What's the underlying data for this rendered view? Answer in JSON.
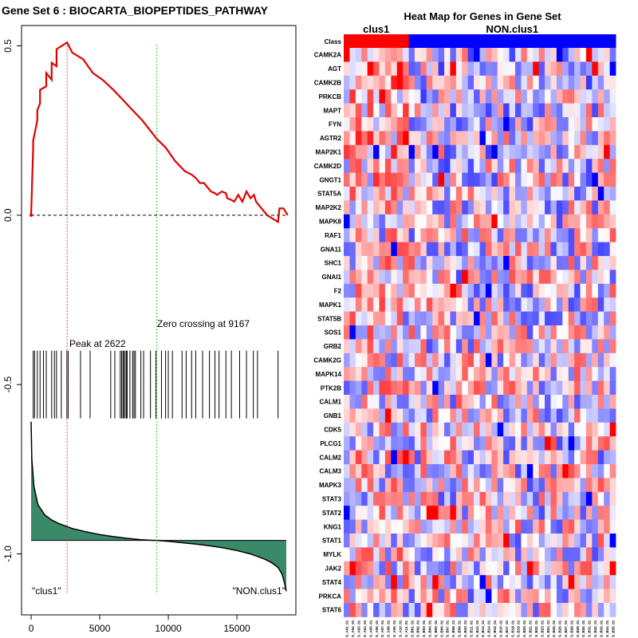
{
  "chart_data": [
    {
      "type": "line",
      "title": "Gene Set  6 : BIOCARTA_BIOPEPTIDES_PATHWAY",
      "x_ticks": [
        "0",
        "5000",
        "10000",
        "15000"
      ],
      "x_tick_values": [
        0,
        5000,
        10000,
        15000
      ],
      "y_ticks": [
        "0.5",
        "0.0",
        "-0.5",
        "-1.0"
      ],
      "y_tick_values": [
        0.5,
        0.0,
        -0.5,
        -1.0
      ],
      "xlim": [
        -700,
        19300
      ],
      "ylim": [
        -1.18,
        0.56
      ],
      "enrichment_score": {
        "x": [
          0,
          150,
          150,
          450,
          450,
          650,
          650,
          1100,
          1100,
          1500,
          1500,
          1850,
          1850,
          2622,
          3000,
          3800,
          4150,
          4500,
          5200,
          6000,
          6700,
          7400,
          8100,
          9167,
          9800,
          10500,
          11200,
          11700,
          12000,
          12300,
          12600,
          13100,
          13400,
          13550,
          13900,
          14200,
          14300,
          14600,
          14800,
          15100,
          15400,
          15700,
          16000,
          16250,
          16400,
          17200,
          18000,
          18100,
          18400,
          18700
        ],
        "y": [
          0.0,
          0.2,
          0.22,
          0.28,
          0.31,
          0.33,
          0.37,
          0.38,
          0.42,
          0.4,
          0.45,
          0.44,
          0.49,
          0.51,
          0.48,
          0.46,
          0.44,
          0.42,
          0.4,
          0.37,
          0.34,
          0.31,
          0.28,
          0.225,
          0.2,
          0.16,
          0.13,
          0.12,
          0.11,
          0.095,
          0.095,
          0.07,
          0.065,
          0.06,
          0.07,
          0.065,
          0.05,
          0.045,
          0.04,
          0.06,
          0.04,
          0.07,
          0.05,
          0.06,
          0.04,
          0.0,
          -0.02,
          0.02,
          0.02,
          0.0
        ]
      },
      "baseline_y": 0.0,
      "peak": {
        "x": 2622,
        "label": "Peak at 2622"
      },
      "zero_crossing": {
        "x": 9167,
        "label": "Zero crossing at 9167"
      },
      "hit_positions": [
        150,
        250,
        450,
        650,
        900,
        1100,
        1500,
        1700,
        1850,
        2200,
        2600,
        2700,
        3600,
        4300,
        5800,
        6100,
        6500,
        6600,
        6700,
        6750,
        6850,
        6950,
        7000,
        7200,
        7400,
        7500,
        7600,
        8000,
        8200,
        8700,
        9100,
        9500,
        9800,
        10000,
        10300,
        11000,
        11300,
        11700,
        12000,
        12500,
        13000,
        13400,
        13700,
        14200,
        14600,
        15200,
        15700,
        16200,
        16500,
        18000
      ],
      "ranked_metric": {
        "x": [
          0,
          50,
          200,
          500,
          1000,
          1500,
          2000,
          3000,
          4000,
          5000,
          6000,
          7000,
          8000,
          9000,
          9167,
          10000,
          11000,
          12000,
          13000,
          14000,
          15000,
          16000,
          17000,
          17500,
          18000,
          18300,
          18500,
          18600
        ],
        "y": [
          -0.61,
          -0.72,
          -0.8,
          -0.855,
          -0.885,
          -0.9,
          -0.91,
          -0.925,
          -0.935,
          -0.943,
          -0.949,
          -0.954,
          -0.958,
          -0.96,
          -0.96,
          -0.963,
          -0.967,
          -0.971,
          -0.976,
          -0.982,
          -0.99,
          -1.0,
          -1.015,
          -1.025,
          -1.04,
          -1.06,
          -1.09,
          -1.11
        ],
        "fill_color": "#3a8a6a"
      },
      "class_labels": {
        "left": "\"clus1\"",
        "right": "\"NON.clus1\""
      },
      "colors": {
        "es_line": "#e00000",
        "peak_line": "#e04040",
        "zero_line": "#30c030"
      }
    },
    {
      "type": "heatmap",
      "title": "Heat Map for Genes in Gene Set",
      "class_row_label": "Class",
      "groups": [
        {
          "name": "clus1",
          "count": 11,
          "color": "#ff0000"
        },
        {
          "name": "NON.clus1",
          "count": 35,
          "color": "#0000ff"
        }
      ],
      "genes": [
        "CAMK2A",
        "AGT",
        "CAMK2B",
        "PRKCB",
        "MAPT",
        "FYN",
        "AGTR2",
        "MAP2K1",
        "CAMK2D",
        "GNGT1",
        "STAT5A",
        "MAP2K2",
        "MAPK8",
        "RAF1",
        "GNA11",
        "SHC1",
        "GNAI1",
        "F2",
        "MAPK1",
        "STAT5B",
        "SOS1",
        "GRB2",
        "CAMK2G",
        "MAPK14",
        "PTK2B",
        "CALM1",
        "GNB1",
        "CDK5",
        "PLCG1",
        "CALM2",
        "CALM3",
        "MAPK3",
        "STAT3",
        "STAT2",
        "KNG1",
        "STAT1",
        "MYLK",
        "JAK2",
        "STAT4",
        "PRKCA",
        "STAT6"
      ],
      "sample_labels": [
        "S_A01_01",
        "S_A02_01",
        "S_A03_01",
        "S_A04_01",
        "S_A05_01",
        "S_A06_01",
        "S_A07_01",
        "S_A08_01",
        "S_A09_01",
        "S_A10_01",
        "S_A11_01",
        "S_B01_01",
        "S_B02_01",
        "S_B03_01",
        "S_B04_01",
        "S_B05_01",
        "S_B06_01",
        "S_B07_01",
        "S_B08_01",
        "S_B09_01",
        "S_B10_01",
        "S_B11_01",
        "S_B12_01",
        "S_B13_01",
        "S_B14_01",
        "S_B15_01",
        "S_B16_01",
        "S_B17_01",
        "S_B18_01",
        "S_B19_01",
        "S_B20_01",
        "S_B21_01",
        "S_B22_01",
        "S_B23_01",
        "S_B24_01",
        "S_B25_01",
        "S_B26_01",
        "S_B27_01",
        "S_B28_01",
        "S_B29_01",
        "S_B30_01",
        "S_B31_01",
        "S_B32_01",
        "S_B33_01",
        "S_B34_01",
        "S_B35_01"
      ],
      "value_range": [
        -3,
        3
      ],
      "colors": {
        "high": "#ff0000",
        "mid": "#ffffff",
        "low": "#0000ff"
      }
    }
  ]
}
